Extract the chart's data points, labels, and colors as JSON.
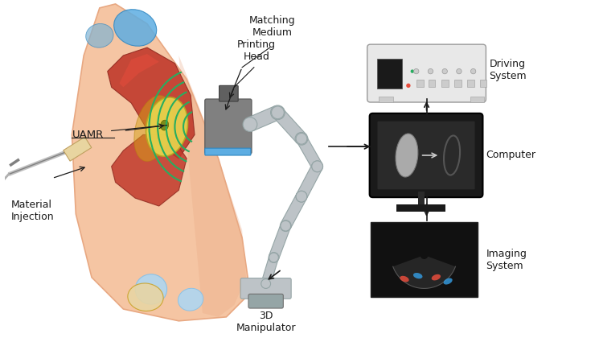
{
  "bg_color": "#ffffff",
  "labels": {
    "material_injection": "Material\nInjection",
    "uamr": "UAMR",
    "matching_medium": "Matching\nMedium",
    "printing_head": "Printing\nHead",
    "driving_system": "Driving\nSystem",
    "computer": "Computer",
    "imaging_system": "Imaging\nSystem",
    "manipulator": "3D\nManipulator"
  },
  "arm_color": "#f5c5a3",
  "arm_shadow": "#e8a882",
  "muscle_color": "#c0392b",
  "muscle_dark": "#922b21",
  "bone_color": "#e8d5a3",
  "joint_color": "#aed6f1",
  "uamr_color": "#e8d44d",
  "uamr_border": "#b8a820",
  "probe_color": "#808080",
  "probe_dark": "#606060",
  "wave_color": "#27ae60",
  "robot_color": "#bdc3c7",
  "robot_dark": "#95a5a6",
  "screen_border": "#1a1a1a",
  "screen_bg": "#2c2c2c",
  "device_color": "#e8e8e8",
  "device_border": "#999999",
  "ultrasound_bg": "#1a1a1a",
  "arrow_color": "#1a1a1a",
  "text_color": "#1a1a1a",
  "font_size": 9,
  "title_font_size": 10
}
